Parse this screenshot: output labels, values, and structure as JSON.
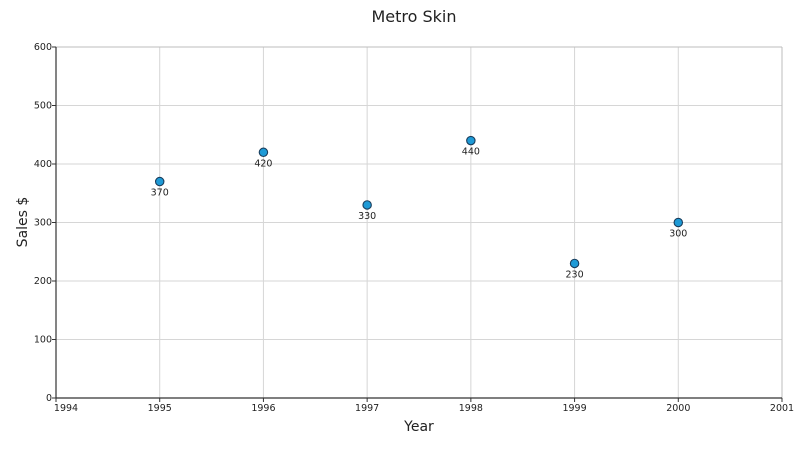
{
  "chart_data": {
    "type": "scatter",
    "title": "Metro Skin",
    "xlabel": "Year",
    "ylabel": "Sales $",
    "xlim": [
      1994,
      2001
    ],
    "ylim": [
      0,
      600
    ],
    "x_ticks": [
      "1994",
      "1995",
      "1996",
      "1997",
      "1998",
      "1999",
      "2000",
      "2001"
    ],
    "y_ticks": [
      "0",
      "100",
      "200",
      "300",
      "400",
      "500",
      "600"
    ],
    "grid": true,
    "legend": "none",
    "marker_color": "#1e9ad6",
    "marker_edge_color": "#1a3d5c",
    "series": [
      {
        "x": [
          1995,
          1996,
          1997,
          1998,
          1999,
          2000
        ],
        "y": [
          370,
          420,
          330,
          440,
          230,
          300
        ],
        "labels": [
          "370",
          "420",
          "330",
          "440",
          "230",
          "300"
        ]
      }
    ]
  }
}
